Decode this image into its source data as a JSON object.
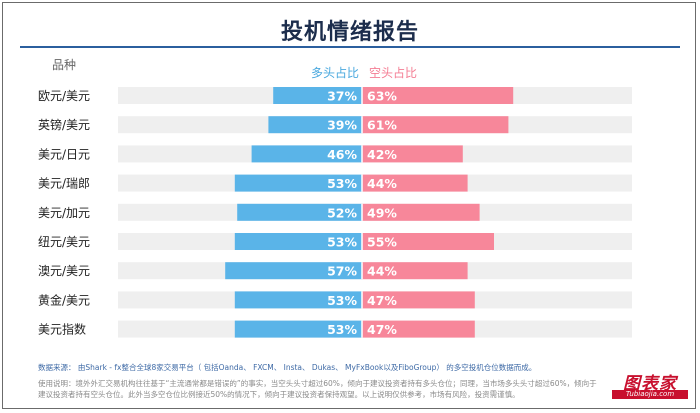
{
  "chart_data": {
    "type": "bar",
    "title": "投机情绪报告",
    "category_header": "品种",
    "categories": [
      "欧元/美元",
      "英镑/美元",
      "美元/日元",
      "美元/瑞郎",
      "美元/加元",
      "纽元/美元",
      "澳元/美元",
      "黄金/美元",
      "美元指数"
    ],
    "series": [
      {
        "name": "多头占比",
        "values": [
          37,
          39,
          46,
          53,
          52,
          53,
          57,
          53,
          53
        ],
        "labels": [
          "37%",
          "39%",
          "46%",
          "53%",
          "52%",
          "53%",
          "57%",
          "53%",
          "53%"
        ]
      },
      {
        "name": "空头占比",
        "values": [
          63,
          61,
          42,
          44,
          49,
          55,
          44,
          47,
          47
        ],
        "labels": [
          "63%",
          "61%",
          "42%",
          "44%",
          "49%",
          "55%",
          "44%",
          "47%",
          "47%"
        ]
      }
    ],
    "colors": {
      "long": "#5ab4e8",
      "short": "#f7879a",
      "track": "#efefef"
    }
  },
  "footer": {
    "source": "数据来源： 由Shark - fx整合全球8家交易平台（ 包括Oanda、 FXCM、 Insta、 Dukas、 MyFxBook以及FiboGroup） 的多空投机仓位数据而成。",
    "note": "使用说明：境外外汇交易机构往往基于“主流通常都是错误的”的事实，当空头头寸超过60%，倾向于建议投资者持有多头仓位；同理，当市场多头头寸超过60%，倾向于建议投资者持有空头仓位。此外当多空仓位比例接近50%的情况下，倾向于建议投资者保持观望。以上说明仅供参考，市场有风险，投资需谨慎。"
  },
  "logo": {
    "main": "图表家",
    "sub": "Tubiaojia.com"
  }
}
